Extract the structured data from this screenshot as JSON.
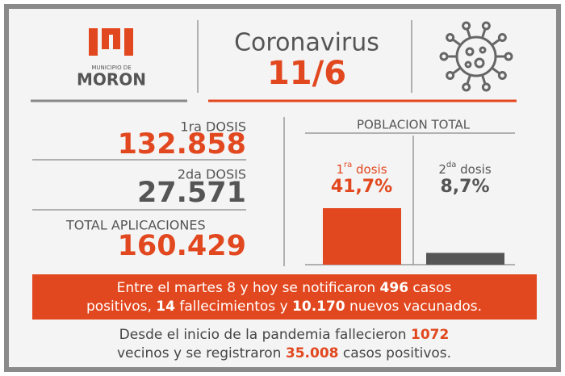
{
  "logo": {
    "small": "MUNICIPIO DE",
    "name": "MORON"
  },
  "header": {
    "title": "Coronavirus",
    "date": "11/6"
  },
  "doses": [
    {
      "label": "1ra DOSIS",
      "value": "132.858"
    },
    {
      "label": "2da DOSIS",
      "value": "27.571"
    },
    {
      "label": "TOTAL APLICACIONES",
      "value": "160.429"
    }
  ],
  "population": {
    "title": "POBLACION TOTAL",
    "bars": [
      {
        "number": "1",
        "suffix": "ra",
        "word": "dosis",
        "value": 41.7,
        "value_label": "41,7%",
        "color": "#e2481f"
      },
      {
        "number": "2",
        "suffix": "da",
        "word": "dosis",
        "value": 8.7,
        "value_label": "8,7%",
        "color": "#555555"
      }
    ]
  },
  "banner": {
    "lines": [
      [
        {
          "text": "Entre el martes 8 y hoy se notificaron ",
          "bold": false
        },
        {
          "text": "496",
          "bold": true
        },
        {
          "text": " casos",
          "bold": false
        }
      ],
      [
        {
          "text": "positivos, ",
          "bold": false
        },
        {
          "text": "14",
          "bold": true
        },
        {
          "text": " fallecimientos y ",
          "bold": false
        },
        {
          "text": "10.170",
          "bold": true
        },
        {
          "text": " nuevos vacunados.",
          "bold": false
        }
      ]
    ]
  },
  "footer": {
    "lines": [
      [
        {
          "text": "Desde el inicio de la pandemia fallecieron ",
          "bold": false
        },
        {
          "text": "1072",
          "bold": true
        }
      ],
      [
        {
          "text": "vecinos y se registraron ",
          "bold": false
        },
        {
          "text": "35.008",
          "bold": true
        },
        {
          "text": " casos positivos.",
          "bold": false
        }
      ]
    ]
  }
}
